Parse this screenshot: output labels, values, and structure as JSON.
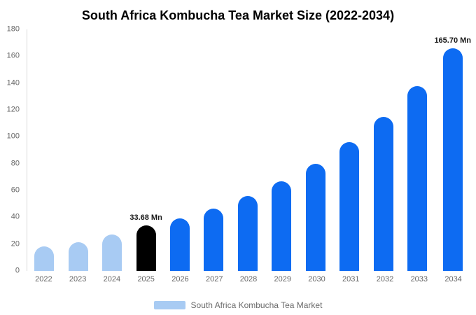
{
  "title": "South Africa Kombucha Tea Market Size (2022-2034)",
  "colors": {
    "light": "#a8cbf3",
    "primary": "#0d6bf2",
    "highlight": "#000000",
    "axis_text": "#666666"
  },
  "legend": {
    "label": "South Africa Kombucha Tea Market",
    "swatch_color": "#a8cbf3"
  },
  "chart_data": {
    "type": "bar",
    "title": "South Africa Kombucha Tea Market Size (2022-2034)",
    "xlabel": "",
    "ylabel": "",
    "ylim": [
      0,
      180
    ],
    "ytick_step": 20,
    "grid": false,
    "legend_position": "bottom",
    "categories": [
      "2022",
      "2023",
      "2024",
      "2025",
      "2026",
      "2027",
      "2028",
      "2029",
      "2030",
      "2031",
      "2032",
      "2033",
      "2034"
    ],
    "values": [
      18.5,
      21.5,
      27,
      33.68,
      39,
      46.5,
      56,
      67,
      80,
      96,
      115,
      137.5,
      165.7
    ],
    "point_colors": [
      "light",
      "light",
      "light",
      "highlight",
      "primary",
      "primary",
      "primary",
      "primary",
      "primary",
      "primary",
      "primary",
      "primary",
      "primary"
    ],
    "point_labels": [
      "",
      "",
      "",
      "33.68 Mn",
      "",
      "",
      "",
      "",
      "",
      "",
      "",
      "",
      "165.70 Mn"
    ]
  }
}
